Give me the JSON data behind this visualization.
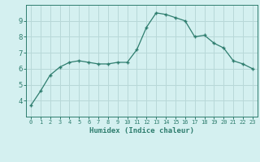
{
  "x": [
    0,
    1,
    2,
    3,
    4,
    5,
    6,
    7,
    8,
    9,
    10,
    11,
    12,
    13,
    14,
    15,
    16,
    17,
    18,
    19,
    20,
    21,
    22,
    23
  ],
  "y": [
    3.7,
    4.6,
    5.6,
    6.1,
    6.4,
    6.5,
    6.4,
    6.3,
    6.3,
    6.4,
    6.4,
    7.2,
    8.6,
    9.5,
    9.4,
    9.2,
    9.0,
    8.0,
    8.1,
    7.6,
    7.3,
    6.5,
    6.3,
    6.0
  ],
  "xlabel": "Humidex (Indice chaleur)",
  "ylabel": "",
  "xlim": [
    -0.5,
    23.5
  ],
  "ylim": [
    3,
    10
  ],
  "yticks": [
    4,
    5,
    6,
    7,
    8,
    9
  ],
  "xticks": [
    0,
    1,
    2,
    3,
    4,
    5,
    6,
    7,
    8,
    9,
    10,
    11,
    12,
    13,
    14,
    15,
    16,
    17,
    18,
    19,
    20,
    21,
    22,
    23
  ],
  "line_color": "#2e7d6e",
  "marker": "+",
  "background_color": "#d4f0f0",
  "grid_color": "#b8d8d8",
  "axis_color": "#2e7d6e",
  "tick_color": "#2e7d6e",
  "label_color": "#2e7d6e",
  "font_family": "monospace"
}
